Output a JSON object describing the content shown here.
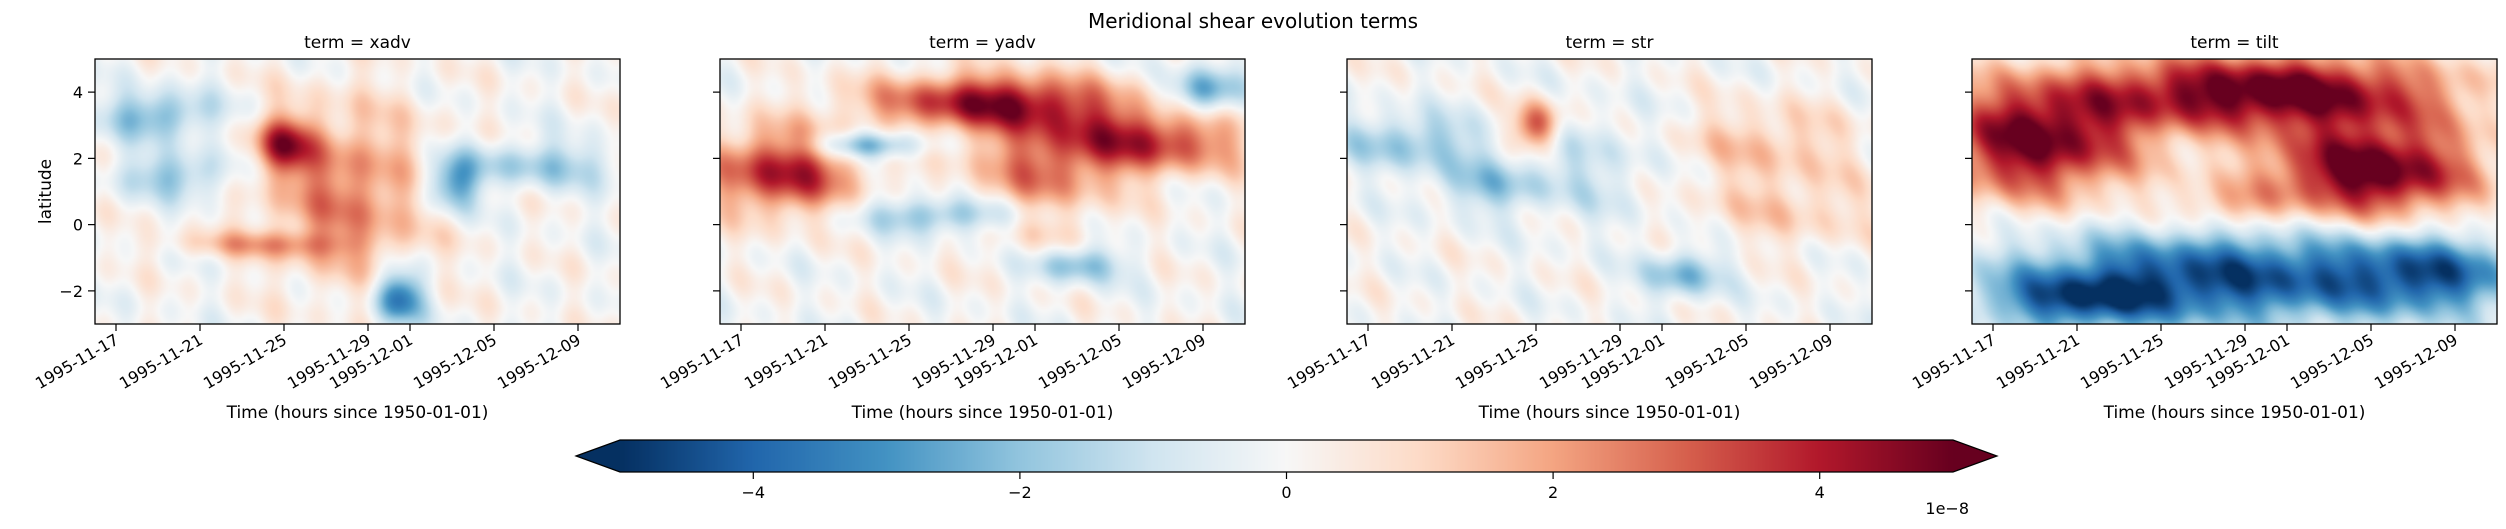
{
  "suptitle": "Meridional shear evolution terms",
  "chart_data": [
    {
      "type": "heatmap",
      "title": "term = xadv",
      "xlabel": "Time (hours since 1950-01-01)",
      "ylabel": "latitude",
      "x_ticks": [
        "1995-11-17",
        "1995-11-21",
        "1995-11-25",
        "1995-11-29",
        "1995-12-01",
        "1995-12-05",
        "1995-12-09"
      ],
      "x_range": [
        "1995-11-16",
        "1995-12-11"
      ],
      "y_ticks": [
        -2,
        0,
        2,
        4
      ],
      "ylim": [
        -3,
        5
      ],
      "features": [
        {
          "t": 9.0,
          "lat": 2.4,
          "sign": 1,
          "a": 3.5,
          "st": 1.0,
          "sl": 0.6
        },
        {
          "t": 12.0,
          "lat": 1.0,
          "sign": 1,
          "a": 2.6,
          "st": 2.8,
          "sl": 1.8
        },
        {
          "t": 14.5,
          "lat": -2.2,
          "sign": -1,
          "a": 4.0,
          "st": 0.8,
          "sl": 0.6
        },
        {
          "t": 17.0,
          "lat": 1.2,
          "sign": -1,
          "a": 3.0,
          "st": 0.9,
          "sl": 0.6
        },
        {
          "t": 3.0,
          "lat": 3.3,
          "sign": -1,
          "a": 2.4,
          "st": 2.0,
          "sl": 0.5
        },
        {
          "t": 4.0,
          "lat": 1.5,
          "sign": -1,
          "a": 2.0,
          "st": 2.0,
          "sl": 0.5
        },
        {
          "t": 21.0,
          "lat": 1.8,
          "sign": -1,
          "a": 1.8,
          "st": 3.0,
          "sl": 0.5
        },
        {
          "t": 8.0,
          "lat": -0.6,
          "sign": 1,
          "a": 1.6,
          "st": 3.0,
          "sl": 0.3
        }
      ]
    },
    {
      "type": "heatmap",
      "title": "term = yadv",
      "xlabel": "Time (hours since 1950-01-01)",
      "ylabel": "",
      "x_ticks": [
        "1995-11-17",
        "1995-11-21",
        "1995-11-25",
        "1995-11-29",
        "1995-12-01",
        "1995-12-05",
        "1995-12-09"
      ],
      "x_range": [
        "1995-11-16",
        "1995-12-11"
      ],
      "y_ticks": [
        -2,
        0,
        2,
        4
      ],
      "ylim": [
        -3,
        5
      ],
      "features": [
        {
          "t": 13.0,
          "lat": 3.7,
          "sign": 1,
          "a": 4.5,
          "st": 4.0,
          "sl": 0.6
        },
        {
          "t": 20.0,
          "lat": 2.5,
          "sign": 1,
          "a": 3.8,
          "st": 3.5,
          "sl": 0.7
        },
        {
          "t": 3.0,
          "lat": 1.6,
          "sign": 1,
          "a": 4.2,
          "st": 2.5,
          "sl": 0.9
        },
        {
          "t": 15.0,
          "lat": 1.2,
          "sign": 1,
          "a": 2.2,
          "st": 2.5,
          "sl": 1.2
        },
        {
          "t": 7.0,
          "lat": 2.4,
          "sign": -1,
          "a": 3.2,
          "st": 1.8,
          "sl": 0.3
        },
        {
          "t": 23.0,
          "lat": 4.0,
          "sign": -1,
          "a": 3.0,
          "st": 1.2,
          "sl": 0.5
        },
        {
          "t": 11.0,
          "lat": 0.3,
          "sign": -1,
          "a": 2.5,
          "st": 3.0,
          "sl": 0.4
        },
        {
          "t": 17.0,
          "lat": -1.2,
          "sign": -1,
          "a": 2.4,
          "st": 1.5,
          "sl": 0.4
        }
      ]
    },
    {
      "type": "heatmap",
      "title": "term = str",
      "xlabel": "Time (hours since 1950-01-01)",
      "ylabel": "",
      "x_ticks": [
        "1995-11-17",
        "1995-11-21",
        "1995-11-25",
        "1995-11-29",
        "1995-12-01",
        "1995-12-05",
        "1995-12-09"
      ],
      "x_range": [
        "1995-11-16",
        "1995-12-11"
      ],
      "y_ticks": [
        -2,
        0,
        2,
        4
      ],
      "ylim": [
        -3,
        5
      ],
      "features": [
        {
          "t": 9.0,
          "lat": 3.0,
          "sign": 1,
          "a": 3.5,
          "st": 0.8,
          "sl": 0.5
        },
        {
          "t": 3.0,
          "lat": 2.5,
          "sign": -1,
          "a": 2.0,
          "st": 2.5,
          "sl": 0.6
        },
        {
          "t": 7.0,
          "lat": 1.2,
          "sign": -1,
          "a": 1.8,
          "st": 2.0,
          "sl": 0.6
        },
        {
          "t": 16.0,
          "lat": -1.5,
          "sign": -1,
          "a": 2.4,
          "st": 1.3,
          "sl": 0.5
        },
        {
          "t": 20.0,
          "lat": 2.5,
          "sign": 1,
          "a": 1.4,
          "st": 3.0,
          "sl": 0.8
        },
        {
          "t": 21.0,
          "lat": 0.5,
          "sign": 1,
          "a": 1.2,
          "st": 3.0,
          "sl": 0.8
        },
        {
          "t": 12.0,
          "lat": 1.8,
          "sign": -1,
          "a": 1.0,
          "st": 2.0,
          "sl": 1.2
        }
      ]
    },
    {
      "type": "heatmap",
      "title": "term = tilt",
      "xlabel": "Time (hours since 1950-01-01)",
      "ylabel": "",
      "x_ticks": [
        "1995-11-17",
        "1995-11-21",
        "1995-11-25",
        "1995-11-29",
        "1995-12-01",
        "1995-12-05",
        "1995-12-09"
      ],
      "x_range": [
        "1995-11-16",
        "1995-12-11"
      ],
      "y_ticks": [
        -2,
        0,
        2,
        4
      ],
      "ylim": [
        -3,
        5
      ],
      "features": [
        {
          "t": 14.0,
          "lat": 4.0,
          "sign": 1,
          "a": 5.5,
          "st": 6.0,
          "sl": 0.8
        },
        {
          "t": 3.0,
          "lat": 2.5,
          "sign": 1,
          "a": 5.0,
          "st": 3.5,
          "sl": 1.2
        },
        {
          "t": 19.0,
          "lat": 1.6,
          "sign": 1,
          "a": 5.5,
          "st": 3.5,
          "sl": 1.0
        },
        {
          "t": 12.0,
          "lat": -1.6,
          "sign": -1,
          "a": 4.5,
          "st": 7.0,
          "sl": 1.0
        },
        {
          "t": 5.0,
          "lat": -2.3,
          "sign": -1,
          "a": 3.0,
          "st": 3.0,
          "sl": 0.6
        },
        {
          "t": 22.0,
          "lat": -1.5,
          "sign": -1,
          "a": 3.0,
          "st": 3.0,
          "sl": 0.8
        },
        {
          "t": 12.0,
          "lat": 0.5,
          "sign": 1,
          "a": 1.5,
          "st": 2.0,
          "sl": 0.5
        }
      ]
    }
  ],
  "colorbar": {
    "cmap": "RdBu_r",
    "vmin": -5,
    "vmax": 5,
    "extend": "both",
    "ticks": [
      -4,
      -2,
      0,
      2,
      4
    ],
    "tick_labels": [
      "−4",
      "−2",
      "0",
      "2",
      "4"
    ],
    "offset_text": "1e−8"
  }
}
